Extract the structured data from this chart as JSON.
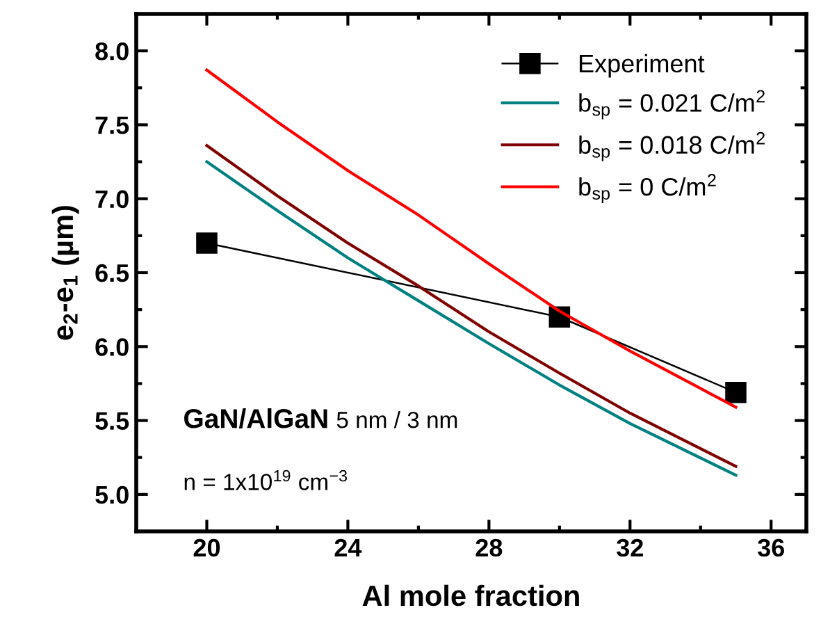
{
  "chart_data": {
    "type": "line",
    "xlabel": "Al mole fraction",
    "ylabel": "e$_{2}$-e$_{1}$ (µm)",
    "xlim": [
      18,
      37
    ],
    "xticks": [
      20,
      24,
      28,
      32,
      36
    ],
    "ylim": [
      4.75,
      8.25
    ],
    "yticks": [
      {
        "value": 5,
        "label": "5.0"
      },
      {
        "value": 5.5,
        "label": "5.5"
      },
      {
        "value": 6,
        "label": "6.0"
      },
      {
        "value": 6.5,
        "label": "6.5"
      },
      {
        "value": 7,
        "label": "7.0"
      },
      {
        "value": 7.5,
        "label": "7.5"
      },
      {
        "value": 8,
        "label": "8.0"
      }
    ],
    "grid": false,
    "legend": "top right",
    "series": [
      {
        "name": "Experiment",
        "color": "#000000",
        "marker": "square",
        "x": [
          20,
          30,
          35
        ],
        "values": [
          6.7,
          6.2,
          5.69
        ]
      },
      {
        "name": "b$_{sp}$ = 0.021 C/m$^{2}$",
        "color": "#008080",
        "marker": "none",
        "x": [
          20,
          22,
          24,
          26,
          28,
          30,
          32,
          35
        ],
        "values": [
          7.25,
          6.92,
          6.6,
          6.31,
          6.02,
          5.74,
          5.48,
          5.13
        ]
      },
      {
        "name": "b$_{sp}$ = 0.018 C/m$^{2}$",
        "color": "#800000",
        "marker": "none",
        "x": [
          20,
          22,
          24,
          26,
          28,
          30,
          32,
          35
        ],
        "values": [
          7.36,
          7.02,
          6.7,
          6.41,
          6.1,
          5.82,
          5.55,
          5.19
        ]
      },
      {
        "name": "b$_{sp}$ = 0 C/m$^{2}$",
        "color": "#ff0000",
        "marker": "none",
        "x": [
          20,
          22,
          24,
          26,
          28,
          30,
          32,
          35
        ],
        "values": [
          7.87,
          7.52,
          7.19,
          6.89,
          6.56,
          6.24,
          5.97,
          5.59
        ]
      }
    ],
    "annotations": [
      "GaN/AlGaN",
      "5 nm / 3 nm",
      "n = 1x10$^{19}$ cm$^{−3}$"
    ]
  }
}
